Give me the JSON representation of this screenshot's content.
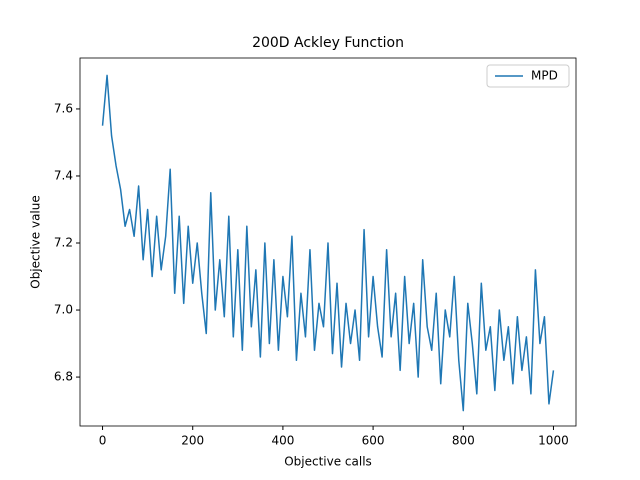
{
  "chart_data": {
    "type": "line",
    "title": "200D Ackley Function",
    "x_label": "Objective calls",
    "y_label": "Objective value",
    "x": [
      0,
      10,
      20,
      30,
      40,
      50,
      60,
      70,
      80,
      90,
      100,
      110,
      120,
      130,
      140,
      150,
      160,
      170,
      180,
      190,
      200,
      210,
      220,
      230,
      240,
      250,
      260,
      270,
      280,
      290,
      300,
      310,
      320,
      330,
      340,
      350,
      360,
      370,
      380,
      390,
      400,
      410,
      420,
      430,
      440,
      450,
      460,
      470,
      480,
      490,
      500,
      510,
      520,
      530,
      540,
      550,
      560,
      570,
      580,
      590,
      600,
      610,
      620,
      630,
      640,
      650,
      660,
      670,
      680,
      690,
      700,
      710,
      720,
      730,
      740,
      750,
      760,
      770,
      780,
      790,
      800,
      810,
      820,
      830,
      840,
      850,
      860,
      870,
      880,
      890,
      900,
      910,
      920,
      930,
      940,
      950,
      960,
      970,
      980,
      990,
      1000
    ],
    "series": [
      {
        "name": "MPD",
        "color": "#1f77b4",
        "values": [
          7.55,
          7.7,
          7.52,
          7.43,
          7.36,
          7.25,
          7.3,
          7.22,
          7.37,
          7.15,
          7.3,
          7.1,
          7.28,
          7.12,
          7.22,
          7.42,
          7.05,
          7.28,
          7.02,
          7.25,
          7.08,
          7.2,
          7.05,
          6.93,
          7.35,
          7.0,
          7.15,
          6.98,
          7.28,
          6.92,
          7.18,
          6.88,
          7.25,
          6.95,
          7.12,
          6.86,
          7.2,
          6.9,
          7.15,
          6.88,
          7.1,
          6.98,
          7.22,
          6.85,
          7.05,
          6.92,
          7.18,
          6.88,
          7.02,
          6.95,
          7.2,
          6.87,
          7.08,
          6.83,
          7.02,
          6.9,
          7.0,
          6.85,
          7.24,
          6.92,
          7.1,
          6.95,
          6.86,
          7.18,
          6.92,
          7.05,
          6.82,
          7.1,
          6.9,
          7.02,
          6.8,
          7.15,
          6.95,
          6.88,
          7.05,
          6.78,
          7.0,
          6.92,
          7.1,
          6.85,
          6.7,
          7.02,
          6.9,
          6.75,
          7.08,
          6.88,
          6.95,
          6.76,
          7.0,
          6.85,
          6.95,
          6.78,
          6.98,
          6.82,
          6.92,
          6.75,
          7.12,
          6.9,
          6.98,
          6.72,
          6.82
        ]
      }
    ],
    "xlim": [
      -50,
      1050
    ],
    "xticks": [
      0,
      200,
      400,
      600,
      800,
      1000
    ],
    "ylim": [
      6.654,
      7.752
    ],
    "yticks": [
      {
        "value": 6.8,
        "label": "6.8"
      },
      {
        "value": 7.0,
        "label": "7.0"
      },
      {
        "value": 7.2,
        "label": "7.2"
      },
      {
        "value": 7.4,
        "label": "7.4"
      },
      {
        "value": 7.6,
        "label": "7.6"
      }
    ],
    "legend": "upper right",
    "grid": false
  }
}
